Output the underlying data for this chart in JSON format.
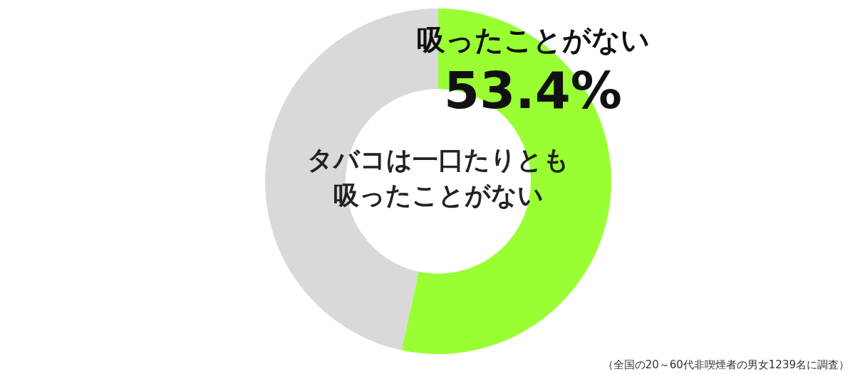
{
  "chart_data": {
    "type": "donut",
    "title": "タバコは一口たりとも吸ったことがない",
    "categories": [
      "吸ったことがない",
      null
    ],
    "values": [
      53.4,
      46.6
    ],
    "colors": [
      "#99ff33",
      "#d9d9d9"
    ],
    "value_labels": [
      "53.4%",
      null
    ],
    "annotations": [
      "（全国の20～60代非喫煙者の男女1239名に調査）"
    ]
  }
}
